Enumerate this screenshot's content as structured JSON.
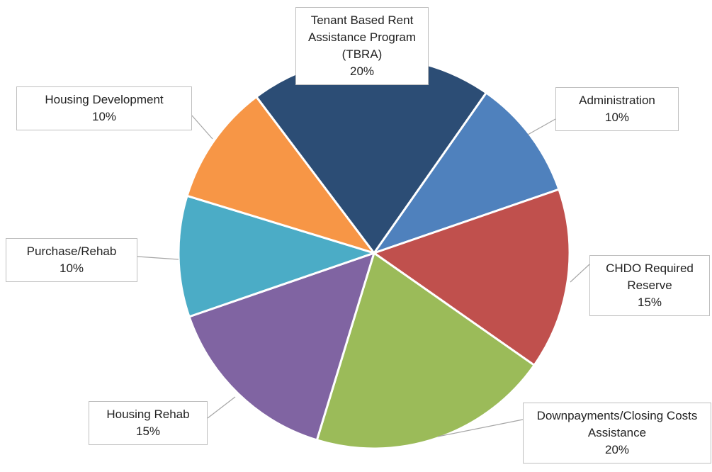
{
  "chart_data": {
    "type": "pie",
    "categories": [
      "Administration",
      "CHDO Required Reserve",
      "Downpayments/Closing Costs Assistance",
      "Housing Rehab",
      "Purchase/Rehab",
      "Housing Development",
      "Tenant Based Rent Assistance Program (TBRA)"
    ],
    "values": [
      10,
      15,
      20,
      15,
      10,
      10,
      20
    ],
    "value_labels": [
      "10%",
      "15%",
      "20%",
      "15%",
      "10%",
      "10%",
      "20%"
    ],
    "colors": [
      "#4f81bd",
      "#c0504d",
      "#9bbb59",
      "#8064a2",
      "#4bacc6",
      "#f79646",
      "#2c4d75"
    ]
  }
}
